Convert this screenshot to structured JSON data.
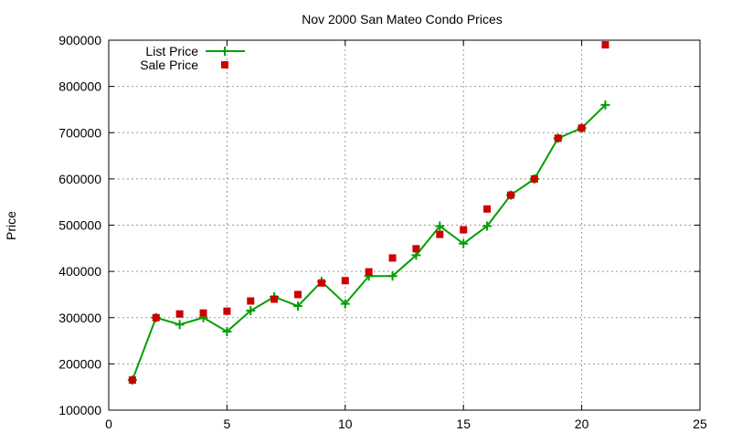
{
  "chart_data": {
    "type": "line",
    "title": "Nov 2000 San Mateo Condo Prices",
    "xlabel": "",
    "ylabel": "Price",
    "xlim": [
      0,
      25
    ],
    "ylim": [
      100000,
      900000
    ],
    "xticks": [
      0,
      5,
      10,
      15,
      20,
      25
    ],
    "yticks": [
      100000,
      200000,
      300000,
      400000,
      500000,
      600000,
      700000,
      800000,
      900000
    ],
    "grid": true,
    "legend_position": "top-left",
    "x": [
      1,
      2,
      3,
      4,
      5,
      6,
      7,
      8,
      9,
      10,
      11,
      12,
      13,
      14,
      15,
      16,
      17,
      18,
      19,
      20,
      21
    ],
    "series": [
      {
        "name": "List Price",
        "style": "linespoints",
        "marker": "plus",
        "color": "#00a000",
        "values": [
          165000,
          300000,
          285000,
          300000,
          270000,
          315000,
          345000,
          325000,
          378000,
          330000,
          390000,
          390000,
          435000,
          498000,
          460000,
          498000,
          565000,
          600000,
          688000,
          710000,
          760000
        ]
      },
      {
        "name": "Sale Price",
        "style": "points",
        "marker": "square",
        "color": "#cc0000",
        "values": [
          165000,
          300000,
          308000,
          310000,
          314000,
          336000,
          340000,
          350000,
          375000,
          380000,
          399000,
          429000,
          449000,
          480000,
          490000,
          535000,
          565000,
          600000,
          688000,
          710000,
          890000
        ]
      }
    ]
  }
}
